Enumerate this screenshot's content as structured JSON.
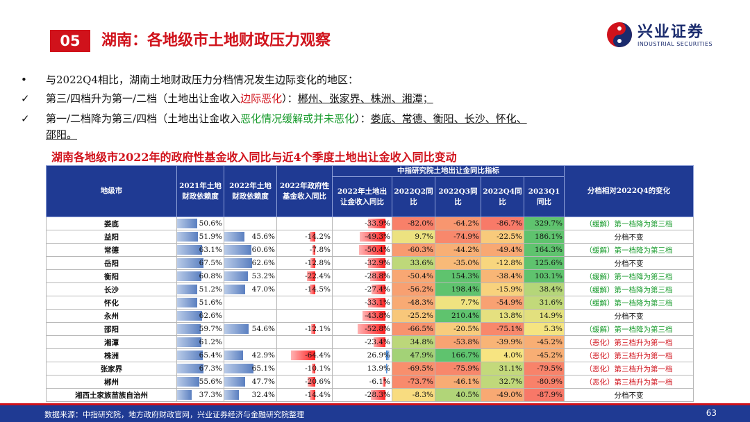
{
  "header": {
    "badge": "05",
    "title": "湖南：各地级市土地财政压力观察"
  },
  "logo": {
    "cn": "兴业证券",
    "en": "INDUSTRIAL SECURITIES",
    "icon": "industrial-securities-logo"
  },
  "bullets": {
    "b1": {
      "marker": "•",
      "text": "与2022Q4相比，湖南土地财政压力分档情况发生边际变化的地区："
    },
    "b2": {
      "marker": "✓",
      "pre": "第三/四档升为第一/二档（土地出让金收入",
      "hl": "边际恶化",
      "post": "）：",
      "cities": "郴州、张家界、株洲、湘潭；"
    },
    "b3": {
      "marker": "✓",
      "pre": "第一/二档降为第三/四档（土地出让金收入",
      "hl": "恶化情况缓解或并未恶化",
      "post": "）：",
      "cities": "娄底、常德、衡阳、长沙、怀化、",
      "cities2": "邵阳。"
    }
  },
  "table_title": "湖南各地级市2022年的政府性基金收入同比与近4个季度土地出让金收入同比变动",
  "table": {
    "headers": {
      "city": "地级市",
      "dep2021": "2021年土地财政依赖度",
      "dep2022": "2022年土地财政依赖度",
      "fund2022": "2022年政府性基金收入同比",
      "group": "中指研究院土地出让金同比指标",
      "land2022": "2022年土地出让金收入同比",
      "q2": "2022Q2同比",
      "q3": "2022Q3同比",
      "q4": "2022Q4同比",
      "q1": "2023Q1同比",
      "chg": "分档相对2022Q4的变化"
    },
    "rows": [
      {
        "city": "娄底",
        "dep2021": "50.6%",
        "dep2022": "",
        "fund2022": "",
        "land2022": "-33.9%",
        "q2": "-82.0%",
        "q3": "-64.2%",
        "q4": "-86.7%",
        "q1": "329.7%",
        "chg": "（缓解）第一档降为第三档"
      },
      {
        "city": "益阳",
        "dep2021": "51.9%",
        "dep2022": "45.6%",
        "fund2022": "-14.2%",
        "land2022": "-49.3%",
        "q2": "9.7%",
        "q3": "-74.9%",
        "q4": "-22.5%",
        "q1": "186.1%",
        "chg": "分档不变"
      },
      {
        "city": "常德",
        "dep2021": "63.1%",
        "dep2022": "60.6%",
        "fund2022": "-7.8%",
        "land2022": "-50.4%",
        "q2": "-60.3%",
        "q3": "-44.2%",
        "q4": "-49.4%",
        "q1": "164.3%",
        "chg": "（缓解）第一档降为第三档"
      },
      {
        "city": "岳阳",
        "dep2021": "67.5%",
        "dep2022": "62.6%",
        "fund2022": "-12.8%",
        "land2022": "-32.9%",
        "q2": "33.6%",
        "q3": "-35.0%",
        "q4": "-12.8%",
        "q1": "125.6%",
        "chg": "分档不变"
      },
      {
        "city": "衡阳",
        "dep2021": "60.8%",
        "dep2022": "53.2%",
        "fund2022": "-22.4%",
        "land2022": "-28.8%",
        "q2": "-50.4%",
        "q3": "154.3%",
        "q4": "-38.4%",
        "q1": "103.1%",
        "chg": "（缓解）第一档降为第三档"
      },
      {
        "city": "长沙",
        "dep2021": "51.2%",
        "dep2022": "47.0%",
        "fund2022": "-14.5%",
        "land2022": "-27.4%",
        "q2": "-56.2%",
        "q3": "198.4%",
        "q4": "-15.9%",
        "q1": "38.4%",
        "chg": "（缓解）第一档降为第三档"
      },
      {
        "city": "怀化",
        "dep2021": "51.6%",
        "dep2022": "",
        "fund2022": "",
        "land2022": "-33.1%",
        "q2": "-48.3%",
        "q3": "7.7%",
        "q4": "-54.9%",
        "q1": "31.6%",
        "chg": "（缓解）第一档降为第三档"
      },
      {
        "city": "永州",
        "dep2021": "62.6%",
        "dep2022": "",
        "fund2022": "",
        "land2022": "-43.8%",
        "q2": "-25.2%",
        "q3": "210.4%",
        "q4": "13.8%",
        "q1": "14.9%",
        "chg": "分档不变"
      },
      {
        "city": "邵阳",
        "dep2021": "59.7%",
        "dep2022": "54.6%",
        "fund2022": "-12.1%",
        "land2022": "-52.8%",
        "q2": "-66.5%",
        "q3": "-20.5%",
        "q4": "-75.1%",
        "q1": "5.3%",
        "chg": "（缓解）第一档降为第三档"
      },
      {
        "city": "湘潭",
        "dep2021": "61.2%",
        "dep2022": "",
        "fund2022": "",
        "land2022": "-23.4%",
        "q2": "34.8%",
        "q3": "-53.8%",
        "q4": "-39.9%",
        "q1": "-45.2%",
        "chg": "（恶化）第三档升为第一档"
      },
      {
        "city": "株洲",
        "dep2021": "65.4%",
        "dep2022": "42.9%",
        "fund2022": "-64.4%",
        "land2022": "26.9%",
        "q2": "47.9%",
        "q3": "166.7%",
        "q4": "4.0%",
        "q1": "-45.2%",
        "chg": "（恶化）第三档升为第一档"
      },
      {
        "city": "张家界",
        "dep2021": "67.3%",
        "dep2022": "65.1%",
        "fund2022": "-10.1%",
        "land2022": "13.9%",
        "q2": "-69.5%",
        "q3": "-75.9%",
        "q4": "31.1%",
        "q1": "-79.5%",
        "chg": "（恶化）第三档升为第一档"
      },
      {
        "city": "郴州",
        "dep2021": "55.6%",
        "dep2022": "47.7%",
        "fund2022": "-20.6%",
        "land2022": "-6.1%",
        "q2": "-73.7%",
        "q3": "-46.1%",
        "q4": "32.7%",
        "q1": "-80.9%",
        "chg": "（恶化）第三档升为第一档"
      },
      {
        "city": "湘西土家族苗族自治州",
        "dep2021": "37.3%",
        "dep2022": "32.4%",
        "fund2022": "-14.4%",
        "land2022": "-28.3%",
        "q2": "-8.3%",
        "q3": "40.5%",
        "q4": "-49.0%",
        "q1": "-87.9%",
        "chg": "分档不变"
      }
    ]
  },
  "footer": {
    "source": "数据来源：中指研究院，地方政府财政官网，兴业证券经济与金融研究院整理",
    "page": "63"
  },
  "colors": {
    "brand_red": "#d0121b",
    "header_blue": "#1f3a93",
    "ease_green": "#1a9c2e",
    "worse_red": "#d0121b"
  }
}
